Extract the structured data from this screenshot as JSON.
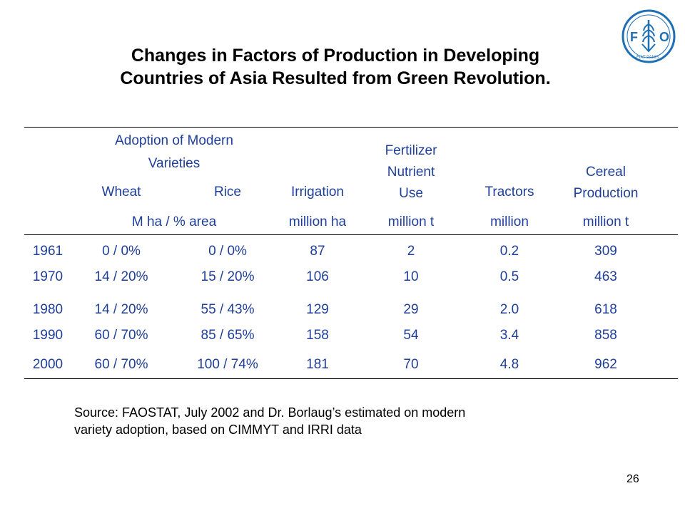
{
  "title": {
    "line1": "Changes in Factors of Production in Developing",
    "line2": "Countries of Asia Resulted from Green Revolution."
  },
  "logo": {
    "icon": "fao-logo",
    "text": "FAO",
    "motto": "FIAT PANIS",
    "color": "#1f6fb5"
  },
  "table": {
    "header": {
      "adoption_line1": "Adoption of Modern",
      "adoption_line2": "Varieties",
      "wheat": "Wheat",
      "rice": "Rice",
      "irrigation": "Irrigation",
      "fertilizer_line1": "Fertilizer",
      "fertilizer_line2": "Nutrient",
      "fertilizer_line3": "Use",
      "tractors": "Tractors",
      "cereal_line1": "Cereal",
      "cereal_line2": "Production"
    },
    "units": {
      "adoption": "M ha / % area",
      "irrigation": "million ha",
      "fertilizer": "million t",
      "tractors": "million",
      "cereal": "million t"
    },
    "rows": [
      {
        "year": "1961",
        "wheat": "0 / 0%",
        "rice": "0 / 0%",
        "irrigation": "87",
        "fertilizer": "2",
        "tractors": "0.2",
        "cereal": "309"
      },
      {
        "year": "1970",
        "wheat": "14 / 20%",
        "rice": "15 / 20%",
        "irrigation": "106",
        "fertilizer": "10",
        "tractors": "0.5",
        "cereal": "463"
      },
      {
        "year": "1980",
        "wheat": "14 / 20%",
        "rice": "55 / 43%",
        "irrigation": "129",
        "fertilizer": "29",
        "tractors": "2.0",
        "cereal": "618"
      },
      {
        "year": "1990",
        "wheat": "60 / 70%",
        "rice": "85 / 65%",
        "irrigation": "158",
        "fertilizer": "54",
        "tractors": "3.4",
        "cereal": "858"
      },
      {
        "year": "2000",
        "wheat": "60 / 70%",
        "rice": "100 / 74%",
        "irrigation": "181",
        "fertilizer": "70",
        "tractors": "4.8",
        "cereal": "962"
      }
    ]
  },
  "source": {
    "line1": "Source: FAOSTAT, July 2002 and Dr. Borlaug’s estimated on modern",
    "line2": "variety adoption, based on CIMMYT and IRRI data"
  },
  "page_number": "26"
}
